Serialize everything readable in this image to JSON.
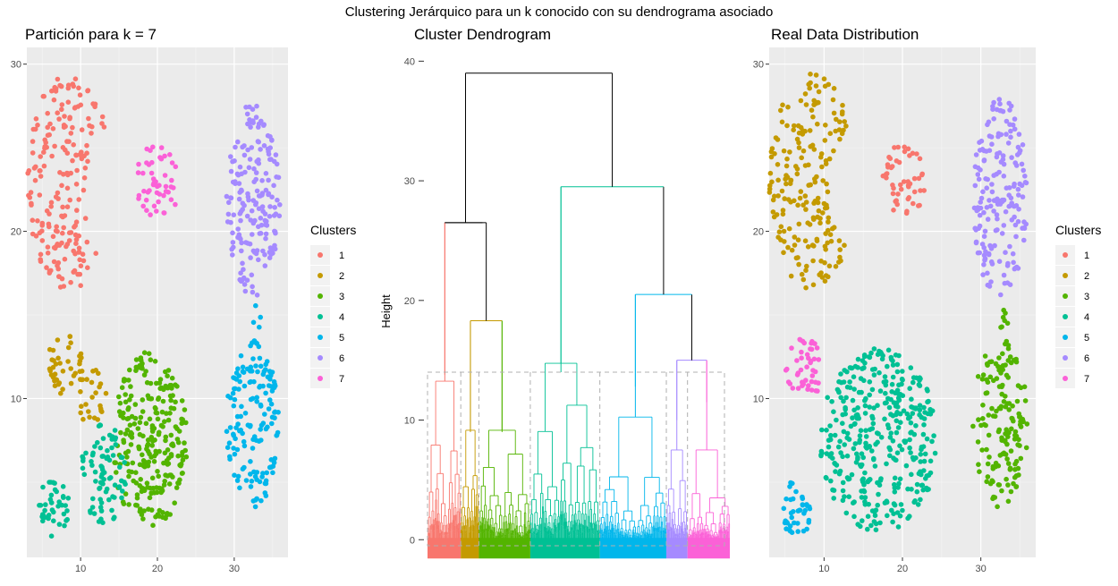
{
  "suptitle": "Clustering Jerárquico para un k conocido con su dendrograma asociado",
  "cluster_colors": {
    "1": "#F8766D",
    "2": "#C49A00",
    "3": "#53B400",
    "4": "#00C094",
    "5": "#00B6EB",
    "6": "#A58AFF",
    "7": "#FB61D7"
  },
  "chart_data": [
    {
      "type": "scatter",
      "title": "Partición para k = 7",
      "xlabel": "",
      "ylabel": "",
      "xlim": [
        3,
        37
      ],
      "ylim": [
        0.5,
        31
      ],
      "x_ticks": [
        10,
        20,
        30
      ],
      "y_ticks": [
        10,
        20,
        30
      ],
      "grid": true,
      "legend": {
        "title": "Clusters",
        "position": "right",
        "entries": [
          "1",
          "2",
          "3",
          "4",
          "5",
          "6",
          "7"
        ]
      },
      "groups": [
        {
          "cluster": "1",
          "shape": "crescent",
          "cx": 8.5,
          "cy": 23,
          "rx": 5.5,
          "ry": 6.5,
          "n": 200
        },
        {
          "cluster": "7",
          "shape": "ellipse",
          "cx": 20,
          "cy": 23,
          "rx": 3,
          "ry": 2.2,
          "n": 50
        },
        {
          "cluster": "6",
          "shape": "ellipse",
          "cx": 32.5,
          "cy": 22,
          "rx": 3.5,
          "ry": 6,
          "n": 180
        },
        {
          "cluster": "2",
          "shape": "ellipse",
          "cx": 8,
          "cy": 12,
          "rx": 2.5,
          "ry": 1.8,
          "n": 40
        },
        {
          "cluster": "2",
          "shape": "ellipse",
          "cx": 11.5,
          "cy": 10,
          "rx": 2,
          "ry": 1.8,
          "n": 25
        },
        {
          "cluster": "3",
          "shape": "ellipse",
          "cx": 19,
          "cy": 7.5,
          "rx": 5,
          "ry": 5.3,
          "n": 260
        },
        {
          "cluster": "4",
          "shape": "ellipse",
          "cx": 13,
          "cy": 5.5,
          "rx": 3,
          "ry": 3,
          "n": 80
        },
        {
          "cluster": "4",
          "shape": "ellipse",
          "cx": 6.5,
          "cy": 3.5,
          "rx": 2,
          "ry": 1.8,
          "n": 40
        },
        {
          "cluster": "5",
          "shape": "ellipse",
          "cx": 32.5,
          "cy": 8.5,
          "rx": 3.5,
          "ry": 5,
          "n": 150
        },
        {
          "cluster": "5",
          "shape": "ellipse",
          "cx": 33,
          "cy": 14.5,
          "rx": 0.6,
          "ry": 1.4,
          "n": 8
        }
      ]
    },
    {
      "type": "dendrogram",
      "title": "Cluster Dendrogram",
      "xlabel": "",
      "ylabel": "Height",
      "ylim": [
        -2,
        41
      ],
      "y_ticks": [
        0,
        10,
        20,
        30,
        40
      ],
      "cut_height": 14,
      "merges": [
        {
          "left": 0.49,
          "right": 0.76,
          "height": 39
        },
        {
          "left": 0.16,
          "right": 0.32,
          "height": 26.5
        },
        {
          "left": 0.61,
          "right": 0.91,
          "height": 29.5
        },
        {
          "left": 0.83,
          "right": 0.99,
          "height": 20.5
        },
        {
          "left": 0.06,
          "right": 0.26,
          "height": 18.3
        },
        {
          "left": 0.04,
          "right": 0.31,
          "height": 14.2
        },
        {
          "left": 0.14,
          "right": 0.41,
          "height": 13.5
        },
        {
          "left": 0.61,
          "right": 0.72,
          "height": 12.8
        },
        {
          "left": 0.49,
          "right": 0.82,
          "height": 14.7
        }
      ],
      "clusters": [
        {
          "cluster": "1",
          "from": 0.0,
          "to": 0.11,
          "top": 26.5
        },
        {
          "cluster": "2",
          "from": 0.11,
          "to": 0.17,
          "top": 18.3
        },
        {
          "cluster": "3",
          "from": 0.17,
          "to": 0.34,
          "top": 18.3
        },
        {
          "cluster": "4",
          "from": 0.34,
          "to": 0.57,
          "top": 29.5
        },
        {
          "cluster": "5",
          "from": 0.57,
          "to": 0.79,
          "top": 20.5
        },
        {
          "cluster": "6",
          "from": 0.79,
          "to": 0.86,
          "top": 15
        },
        {
          "cluster": "7",
          "from": 0.86,
          "to": 1.0,
          "top": 15
        }
      ]
    },
    {
      "type": "scatter",
      "title": "Real Data Distribution",
      "xlabel": "",
      "ylabel": "",
      "xlim": [
        3,
        37
      ],
      "ylim": [
        0.5,
        31
      ],
      "x_ticks": [
        10,
        20,
        30
      ],
      "y_ticks": [
        10,
        20,
        30
      ],
      "grid": true,
      "legend": {
        "title": "Clusters",
        "position": "right",
        "entries": [
          "1",
          "2",
          "3",
          "4",
          "5",
          "6",
          "7"
        ]
      },
      "groups": [
        {
          "cluster": "2",
          "shape": "crescent",
          "cx": 8.5,
          "cy": 23,
          "rx": 5.5,
          "ry": 6.5,
          "n": 200
        },
        {
          "cluster": "1",
          "shape": "ellipse",
          "cx": 20,
          "cy": 23,
          "rx": 3,
          "ry": 2.2,
          "n": 50
        },
        {
          "cluster": "6",
          "shape": "ellipse",
          "cx": 32.5,
          "cy": 22,
          "rx": 3.5,
          "ry": 6,
          "n": 180
        },
        {
          "cluster": "7",
          "shape": "ellipse",
          "cx": 7.5,
          "cy": 11.8,
          "rx": 2.5,
          "ry": 1.8,
          "n": 45
        },
        {
          "cluster": "4",
          "shape": "ellipse",
          "cx": 17,
          "cy": 7.5,
          "rx": 7.5,
          "ry": 5.5,
          "n": 380
        },
        {
          "cluster": "5",
          "shape": "ellipse",
          "cx": 6.5,
          "cy": 3.5,
          "rx": 2,
          "ry": 1.8,
          "n": 40
        },
        {
          "cluster": "3",
          "shape": "ellipse",
          "cx": 32.5,
          "cy": 8.5,
          "rx": 3.5,
          "ry": 5,
          "n": 150
        },
        {
          "cluster": "3",
          "shape": "ellipse",
          "cx": 33,
          "cy": 14.5,
          "rx": 0.6,
          "ry": 1.4,
          "n": 8
        }
      ]
    }
  ]
}
